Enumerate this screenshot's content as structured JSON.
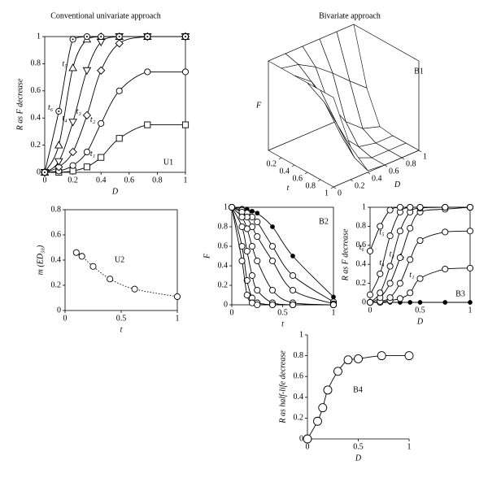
{
  "chart_data": [
    {
      "type": "line",
      "title": "Conventional univariate approach",
      "annotation": "U1",
      "xlabel": "D",
      "ylabel": "R as F decrease",
      "xlim": [
        0,
        1
      ],
      "ylim": [
        0,
        1
      ],
      "xticks": [
        0,
        0.2,
        0.4,
        0.6,
        0.8,
        1
      ],
      "yticks": [
        0,
        0.2,
        0.4,
        0.6,
        0.8,
        1
      ],
      "x": [
        0,
        0.1,
        0.2,
        0.3,
        0.4,
        0.53,
        0.73,
        1
      ],
      "series": [
        {
          "name": "t₁",
          "marker": "square",
          "color": "#000000",
          "values": [
            0,
            0,
            0.01,
            0.04,
            0.11,
            0.25,
            0.35,
            0.35
          ]
        },
        {
          "name": "t₂",
          "marker": "circle",
          "color": "#000000",
          "values": [
            0,
            0.01,
            0.05,
            0.15,
            0.36,
            0.6,
            0.74,
            0.74
          ]
        },
        {
          "name": "t₃",
          "marker": "diamond",
          "color": "#000000",
          "values": [
            0,
            0.04,
            0.15,
            0.42,
            0.75,
            0.95,
            1,
            1
          ]
        },
        {
          "name": "t₄",
          "marker": "triangle-down",
          "color": "#000000",
          "values": [
            0,
            0.08,
            0.37,
            0.75,
            0.96,
            1,
            1,
            1
          ]
        },
        {
          "name": "t₅",
          "marker": "triangle",
          "color": "#000000",
          "values": [
            0,
            0.2,
            0.77,
            0.98,
            1,
            1,
            1,
            1
          ]
        },
        {
          "name": "t₆",
          "marker": "circle-dot",
          "color": "#000000",
          "values": [
            0,
            0.45,
            0.98,
            1,
            1,
            1,
            1,
            1
          ]
        }
      ]
    },
    {
      "type": "surface",
      "title": "Bivariate approach",
      "annotation": "B1",
      "xlabel": "t",
      "ylabel": "D",
      "zlabel": "F",
      "xlim": [
        0,
        1
      ],
      "ylim": [
        0,
        1
      ],
      "zlim": [
        0,
        1
      ],
      "xticks": [
        0.2,
        0.4,
        0.6,
        0.8,
        1
      ],
      "yticks": [
        0,
        0.2,
        0.4,
        0.6,
        0.8,
        1
      ],
      "x": [
        0,
        0.2,
        0.4,
        0.6,
        0.8,
        1
      ],
      "y": [
        0,
        0.2,
        0.4,
        0.6,
        0.8,
        1
      ],
      "z": [
        [
          1,
          1,
          1,
          1,
          1,
          1
        ],
        [
          1,
          0.96,
          0.85,
          0.7,
          0.53,
          0.37
        ],
        [
          1,
          0.85,
          0.53,
          0.24,
          0.08,
          0.02
        ],
        [
          1,
          0.7,
          0.24,
          0.04,
          0,
          0
        ],
        [
          1,
          0.53,
          0.08,
          0,
          0,
          0
        ],
        [
          1,
          0.37,
          0.02,
          0,
          0,
          0
        ]
      ]
    },
    {
      "type": "line",
      "annotation": "U2",
      "xlabel": "t",
      "ylabel": "m (ED₅₀)",
      "linestyle": "dotted",
      "xlim": [
        0,
        1
      ],
      "ylim": [
        0,
        0.8
      ],
      "xticks": [
        0,
        0.5,
        1
      ],
      "yticks": [
        0,
        0.2,
        0.4,
        0.6,
        0.8
      ],
      "x": [
        0.1,
        0.15,
        0.25,
        0.4,
        0.62,
        1
      ],
      "series": [
        {
          "marker": "circle",
          "color": "#000000",
          "values": [
            0.46,
            0.43,
            0.35,
            0.25,
            0.17,
            0.11
          ]
        }
      ]
    },
    {
      "type": "line",
      "annotation": "B2",
      "xlabel": "t",
      "ylabel": "F",
      "xlim": [
        0,
        1
      ],
      "ylim": [
        0,
        1
      ],
      "xticks": [
        0,
        0.5,
        1
      ],
      "yticks": [
        0,
        0.2,
        0.4,
        0.6,
        0.8,
        1
      ],
      "x": [
        0,
        0.1,
        0.15,
        0.2,
        0.25,
        0.4,
        0.6,
        1
      ],
      "series": [
        {
          "marker": "dot",
          "color": "#000000",
          "values": [
            1,
            0.99,
            0.98,
            0.96,
            0.94,
            0.8,
            0.5,
            0.08
          ]
        },
        {
          "marker": "circle",
          "color": "#000000",
          "values": [
            1,
            0.97,
            0.94,
            0.9,
            0.85,
            0.6,
            0.3,
            0.03
          ]
        },
        {
          "marker": "circle",
          "color": "#000000",
          "values": [
            1,
            0.95,
            0.9,
            0.8,
            0.7,
            0.45,
            0.15,
            0.01
          ]
        },
        {
          "marker": "circle",
          "color": "#000000",
          "values": [
            1,
            0.9,
            0.78,
            0.6,
            0.45,
            0.15,
            0.02,
            0
          ]
        },
        {
          "marker": "circle",
          "color": "#000000",
          "values": [
            1,
            0.8,
            0.55,
            0.3,
            0.15,
            0.02,
            0,
            0
          ]
        },
        {
          "marker": "circle",
          "color": "#000000",
          "values": [
            1,
            0.6,
            0.25,
            0.07,
            0.02,
            0,
            0,
            0
          ]
        },
        {
          "marker": "circle",
          "color": "#000000",
          "values": [
            1,
            0.45,
            0.1,
            0.02,
            0,
            0,
            0,
            0
          ]
        }
      ]
    },
    {
      "type": "line",
      "annotation": "B3",
      "xlabel": "D",
      "ylabel": "R as F decrease",
      "xlim": [
        0,
        1
      ],
      "ylim": [
        0,
        1
      ],
      "xticks": [
        0,
        0.5,
        1
      ],
      "yticks": [
        0,
        0.2,
        0.4,
        0.6,
        0.8,
        1
      ],
      "x": [
        0,
        0.1,
        0.2,
        0.3,
        0.4,
        0.5,
        0.75,
        1
      ],
      "series": [
        {
          "marker": "dot",
          "color": "#000000",
          "values": [
            0,
            0,
            0,
            0,
            0,
            0,
            0,
            0
          ]
        },
        {
          "name": "t₁",
          "marker": "circle",
          "color": "#000000",
          "values": [
            0,
            0,
            0.02,
            0.04,
            0.1,
            0.25,
            0.35,
            0.36
          ]
        },
        {
          "name": "t₂",
          "marker": "circle",
          "color": "#000000",
          "values": [
            0,
            0.01,
            0.05,
            0.2,
            0.45,
            0.65,
            0.74,
            0.75
          ]
        },
        {
          "name": "t₃",
          "marker": "circle",
          "color": "#000000",
          "values": [
            0,
            0.05,
            0.2,
            0.47,
            0.78,
            0.95,
            0.98,
            1
          ]
        },
        {
          "name": "t₄",
          "marker": "circle",
          "color": "#000000",
          "values": [
            0,
            0.1,
            0.38,
            0.75,
            0.95,
            0.99,
            1,
            1
          ]
        },
        {
          "name": "t₅",
          "marker": "circle",
          "color": "#000000",
          "values": [
            0.08,
            0.3,
            0.7,
            0.95,
            1,
            1,
            1,
            1
          ]
        },
        {
          "name": "t₆",
          "marker": "circle",
          "color": "#000000",
          "values": [
            0.54,
            0.8,
            0.97,
            1,
            1,
            1,
            1,
            1
          ]
        }
      ]
    },
    {
      "type": "line",
      "annotation": "B4",
      "xlabel": "D",
      "ylabel": "R as half-life decrease",
      "xlim": [
        0,
        1
      ],
      "ylim": [
        0,
        1
      ],
      "xticks": [
        0,
        0.5,
        1
      ],
      "yticks": [
        0,
        0.2,
        0.4,
        0.6,
        0.8,
        1
      ],
      "x": [
        0,
        0.1,
        0.15,
        0.2,
        0.3,
        0.4,
        0.5,
        0.73,
        1
      ],
      "series": [
        {
          "marker": "circle-big",
          "color": "#000000",
          "values": [
            0,
            0.17,
            0.3,
            0.47,
            0.65,
            0.76,
            0.77,
            0.8,
            0.8
          ]
        }
      ]
    }
  ]
}
